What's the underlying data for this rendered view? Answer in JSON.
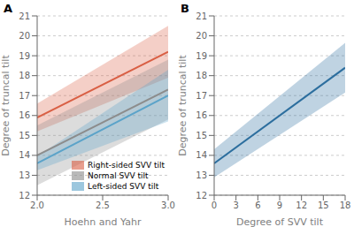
{
  "chart_data": [
    {
      "type": "line",
      "title": "A",
      "x_label": "Hoehn and Yahr",
      "y_label": "Degree of truncal tilt",
      "x": [
        2.0,
        3.0
      ],
      "xlim": [
        2.0,
        3.0
      ],
      "xticks": [
        {
          "value": 2.0,
          "label": "2.0"
        },
        2.5,
        {
          "value": 3.0,
          "label": "3.0"
        }
      ],
      "ylim": [
        12,
        21
      ],
      "yticks": [
        12,
        13,
        14,
        15,
        16,
        17,
        18,
        19,
        20,
        21
      ],
      "grid": true,
      "legend": "lower right",
      "series": [
        {
          "name": "Right-sided SVV tilt",
          "color": "#d95f44",
          "values": [
            15.9,
            19.2
          ],
          "lower": [
            15.2,
            17.9
          ],
          "upper": [
            16.6,
            20.5
          ]
        },
        {
          "name": "Normal SVV tilt",
          "color": "#8c8c8c",
          "values": [
            14.0,
            17.3
          ],
          "lower": [
            12.5,
            15.8
          ],
          "upper": [
            15.5,
            18.8
          ]
        },
        {
          "name": "Left-sided SVV tilt",
          "color": "#5ba3c9",
          "values": [
            13.6,
            17.0
          ],
          "lower": [
            13.25,
            15.7
          ],
          "upper": [
            13.95,
            18.3
          ]
        }
      ]
    },
    {
      "type": "line",
      "title": "B",
      "x_label": "Degree of SVV tilt",
      "y_label": "Degree of truncal tilt",
      "x": [
        0,
        18
      ],
      "xlim": [
        0,
        18
      ],
      "xticks": [
        0,
        3,
        6,
        9,
        12,
        15,
        18
      ],
      "ylim": [
        12,
        21
      ],
      "yticks": [
        12,
        13,
        14,
        15,
        16,
        17,
        18,
        19,
        20,
        21
      ],
      "grid": true,
      "series": [
        {
          "color": "#2c6e9e",
          "values": [
            13.6,
            18.4
          ],
          "lower": [
            12.9,
            17.15
          ],
          "upper": [
            14.3,
            19.65
          ]
        }
      ]
    }
  ]
}
